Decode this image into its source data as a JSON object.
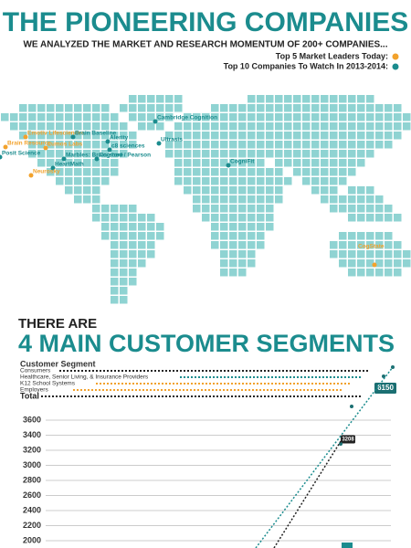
{
  "header": {
    "title": "THE PIONEERING COMPANIES",
    "subtitle": "WE ANALYZED THE MARKET AND RESEARCH MOMENTUM OF 200+ COMPANIES..."
  },
  "legend": [
    {
      "label": "Top 5 Market Leaders Today:",
      "color": "#f2a22c"
    },
    {
      "label": "Top 10 Companies To Watch In 2013-2014:",
      "color": "#1b8c8e"
    }
  ],
  "map_color": "#8fd3d2",
  "map_labels": [
    {
      "text": "Emotiv Lifesciences",
      "color": "#f2a22c"
    },
    {
      "text": "Brain Resource",
      "color": "#f2a22c"
    },
    {
      "text": "Posit Science",
      "color": "#1b8c8e"
    },
    {
      "text": "Lumos Labs",
      "color": "#f2a22c"
    },
    {
      "text": "Brain Baseline",
      "color": "#1b8c8e"
    },
    {
      "text": "Alerity",
      "color": "#1b8c8e"
    },
    {
      "text": "c8 sciences",
      "color": "#1b8c8e"
    },
    {
      "text": "Marbles: Brain store",
      "color": "#1b8c8e"
    },
    {
      "text": "Cogmed / Pearson",
      "color": "#1b8c8e"
    },
    {
      "text": "HeartMath",
      "color": "#1b8c8e"
    },
    {
      "text": "Neurosky",
      "color": "#f2a22c"
    },
    {
      "text": "Cambridge Cognition",
      "color": "#1b8c8e"
    },
    {
      "text": "Ultrasis",
      "color": "#1b8c8e"
    },
    {
      "text": "CogniFit",
      "color": "#1b8c8e"
    },
    {
      "text": "CogState",
      "color": "#f2a22c"
    }
  ],
  "segments": {
    "kicker": "THERE ARE",
    "title": "4 MAIN CUSTOMER SEGMENTS",
    "legend_title": "Customer Segment",
    "items": [
      {
        "label": "Consumers",
        "color": "#222222"
      },
      {
        "label": "Healthcare, Senior Living, & Insurance Providers",
        "color": "#1b8c8e"
      },
      {
        "label": "K12 School Systems",
        "color": "#f2a22c"
      },
      {
        "label": "Employers",
        "color": "#f2a22c"
      }
    ],
    "total": "Total",
    "axis_labels": [
      3600,
      3400,
      3200,
      3000,
      2800,
      2600,
      2400,
      2200,
      2000
    ],
    "callouts": [
      {
        "text": "6150",
        "color": "#1b6f72"
      },
      {
        "text": "3208",
        "color": "#222222"
      }
    ]
  }
}
